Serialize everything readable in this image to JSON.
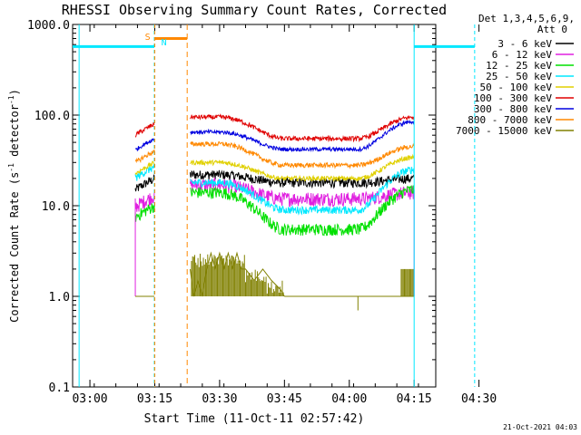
{
  "chart_data": {
    "type": "line",
    "title": "RHESSI Observing Summary Count Rates, Corrected",
    "xlabel": "Start Time (11-Oct-11 02:57:42)",
    "ylabel_main": "Corrected Count Rate (s",
    "ylabel_sup": "-1",
    "ylabel_mid": " detector",
    "ylabel_sup2": "-1",
    "ylabel_end": ")",
    "yscale": "log",
    "ylim": [
      0.1,
      1000
    ],
    "xlim_minutes": [
      -4,
      80
    ],
    "x_ticks": [
      {
        "label": "03:00",
        "min": 0
      },
      {
        "label": "03:15",
        "min": 15
      },
      {
        "label": "03:30",
        "min": 30
      },
      {
        "label": "03:45",
        "min": 45
      },
      {
        "label": "04:00",
        "min": 60
      },
      {
        "label": "04:15",
        "min": 75
      },
      {
        "label": "04:30",
        "min": 90
      }
    ],
    "y_ticks": [
      "0.1",
      "1.0",
      "10.0",
      "100.0",
      "1000.0"
    ],
    "legend_header_1": "Det 1,3,4,5,6,9,",
    "legend_header_2": "Att 0",
    "series": [
      {
        "name": "3 - 6 keV",
        "color": "#000000"
      },
      {
        "name": "6 - 12 keV",
        "color": "#e020e0"
      },
      {
        "name": "12 - 25 keV",
        "color": "#00e000"
      },
      {
        "name": "25 - 50 keV",
        "color": "#00e8ff"
      },
      {
        "name": "50 - 100 keV",
        "color": "#e0d000"
      },
      {
        "name": "100 - 300 keV",
        "color": "#e00000"
      },
      {
        "name": "300 - 800 keV",
        "color": "#0000e0"
      },
      {
        "name": "800 - 7000 keV",
        "color": "#ff8800"
      },
      {
        "name": "7000 - 15000 keV",
        "color": "#808000"
      }
    ],
    "annotations": {
      "saa_label": "S",
      "night_label": "N"
    },
    "footer_date": "21-Oct-2021 04:03"
  }
}
